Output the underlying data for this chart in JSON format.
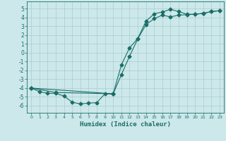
{
  "xlabel": "Humidex (Indice chaleur)",
  "bg_color": "#cce8ea",
  "grid_color": "#aaccce",
  "line_color": "#1a6e68",
  "xlim": [
    -0.5,
    23.5
  ],
  "ylim": [
    -6.8,
    5.8
  ],
  "yticks": [
    -6,
    -5,
    -4,
    -3,
    -2,
    -1,
    0,
    1,
    2,
    3,
    4,
    5
  ],
  "xticks": [
    0,
    1,
    2,
    3,
    4,
    5,
    6,
    7,
    8,
    9,
    10,
    11,
    12,
    13,
    14,
    15,
    16,
    17,
    18,
    19,
    20,
    21,
    22,
    23
  ],
  "line1_x": [
    0,
    1,
    2,
    3,
    4,
    5,
    6,
    7,
    8,
    9,
    10
  ],
  "line1_y": [
    -4.0,
    -4.4,
    -4.6,
    -4.6,
    -4.9,
    -5.6,
    -5.8,
    -5.7,
    -5.65,
    -4.65,
    -4.65
  ],
  "line2_x": [
    0,
    3,
    10,
    11,
    12,
    13,
    14,
    15,
    16,
    17,
    18,
    19,
    20,
    21,
    22,
    23
  ],
  "line2_y": [
    -4.0,
    -4.5,
    -4.65,
    -2.5,
    -0.4,
    1.55,
    3.15,
    3.85,
    4.25,
    4.05,
    4.25,
    4.3,
    4.35,
    4.45,
    4.65,
    4.75
  ],
  "line3_x": [
    0,
    10,
    11,
    12,
    13,
    14,
    15,
    16,
    17,
    18,
    19,
    20,
    21,
    22,
    23
  ],
  "line3_y": [
    -4.0,
    -4.65,
    -1.4,
    0.55,
    1.6,
    3.55,
    4.4,
    4.6,
    4.9,
    4.65,
    4.35,
    4.35,
    4.45,
    4.65,
    4.75
  ]
}
